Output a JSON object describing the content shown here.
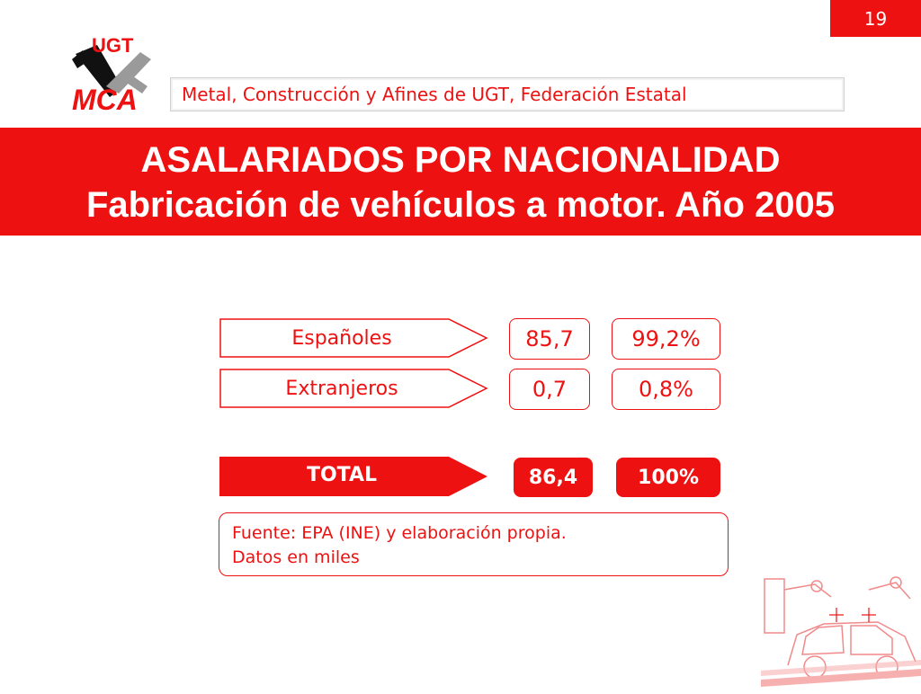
{
  "slide": {
    "page_number": "19",
    "organization": "Metal, Construcción y Afines de UGT, Federación Estatal",
    "logo_text_top": "UGT",
    "logo_text_bottom": "MCA",
    "title_line1": "ASALARIADOS POR NACIONALIDAD",
    "title_line2": "Fabricación de vehículos a motor. Año 2005"
  },
  "table": {
    "rows": [
      {
        "label": "Españoles",
        "value": "85,7",
        "percent": "99,2%"
      },
      {
        "label": "Extranjeros",
        "value": "0,7",
        "percent": "0,8%"
      }
    ],
    "total": {
      "label": "TOTAL",
      "value": "86,4",
      "percent": "100%"
    }
  },
  "source": {
    "line1": "Fuente: EPA (INE) y elaboración propia.",
    "line2": "Datos en miles"
  },
  "colors": {
    "accent": "#ee1111",
    "text_on_accent": "#ffffff"
  },
  "icons": {
    "logo": "ugt-mca-logo",
    "decoration": "car-factory-robot-illustration"
  }
}
